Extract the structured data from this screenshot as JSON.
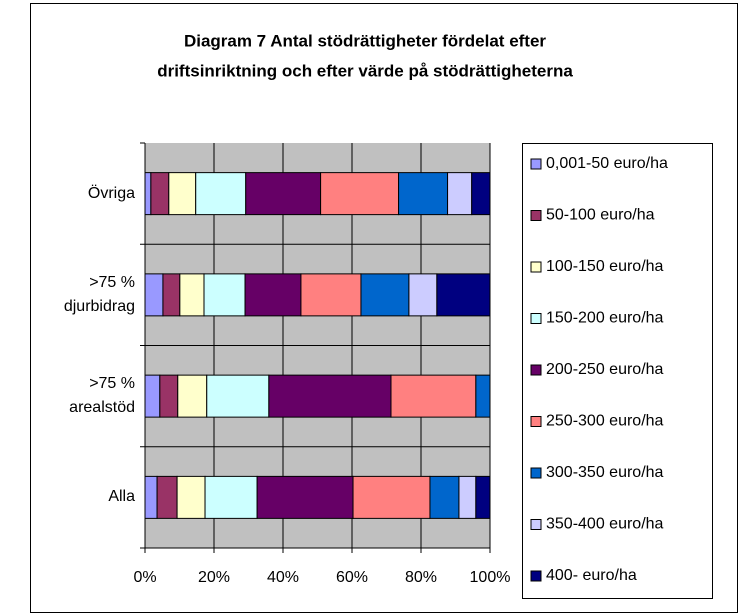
{
  "chart_data": {
    "type": "stacked_bar_horizontal",
    "title": [
      "Diagram 7 Antal stödrättigheter fördelat efter",
      "driftsinriktning och efter värde på stödrättigheterna"
    ],
    "categories": [
      "Alla",
      ">75 % arealstöd",
      ">75 % djurbidrag",
      "Övriga"
    ],
    "series": [
      {
        "name": "0,001-50 euro/ha",
        "color": "#9999ff",
        "values": [
          3.5,
          4.3,
          5.2,
          1.7
        ]
      },
      {
        "name": "50-100 euro/ha",
        "color": "#993366",
        "values": [
          5.8,
          5.2,
          4.9,
          5.2
        ]
      },
      {
        "name": "100-150 euro/ha",
        "color": "#ffffcc",
        "values": [
          8.1,
          8.4,
          7.0,
          7.8
        ]
      },
      {
        "name": "150-200 euro/ha",
        "color": "#ccffff",
        "values": [
          15.1,
          18.0,
          11.9,
          14.5
        ]
      },
      {
        "name": "200-250 euro/ha",
        "color": "#660066",
        "values": [
          27.8,
          35.4,
          16.2,
          21.7
        ]
      },
      {
        "name": "250-300 euro/ha",
        "color": "#ff8080",
        "values": [
          22.3,
          24.6,
          17.4,
          22.6
        ]
      },
      {
        "name": "300-350 euro/ha",
        "color": "#0066cc",
        "values": [
          8.4,
          4.1,
          13.9,
          14.2
        ]
      },
      {
        "name": "350-400 euro/ha",
        "color": "#ccccff",
        "values": [
          4.9,
          0,
          8.1,
          7.0
        ]
      },
      {
        "name": "400-  euro/ha",
        "color": "#000080",
        "values": [
          4.1,
          0,
          15.4,
          5.3
        ]
      }
    ],
    "xlim": [
      0,
      100
    ],
    "xticks": [
      {
        "value": 0,
        "label": "0%"
      },
      {
        "value": 20,
        "label": "20%"
      },
      {
        "value": 40,
        "label": "40%"
      },
      {
        "value": 60,
        "label": "60%"
      },
      {
        "value": 80,
        "label": "80%"
      },
      {
        "value": 100,
        "label": "100%"
      }
    ],
    "grid": true,
    "legend": "right"
  }
}
